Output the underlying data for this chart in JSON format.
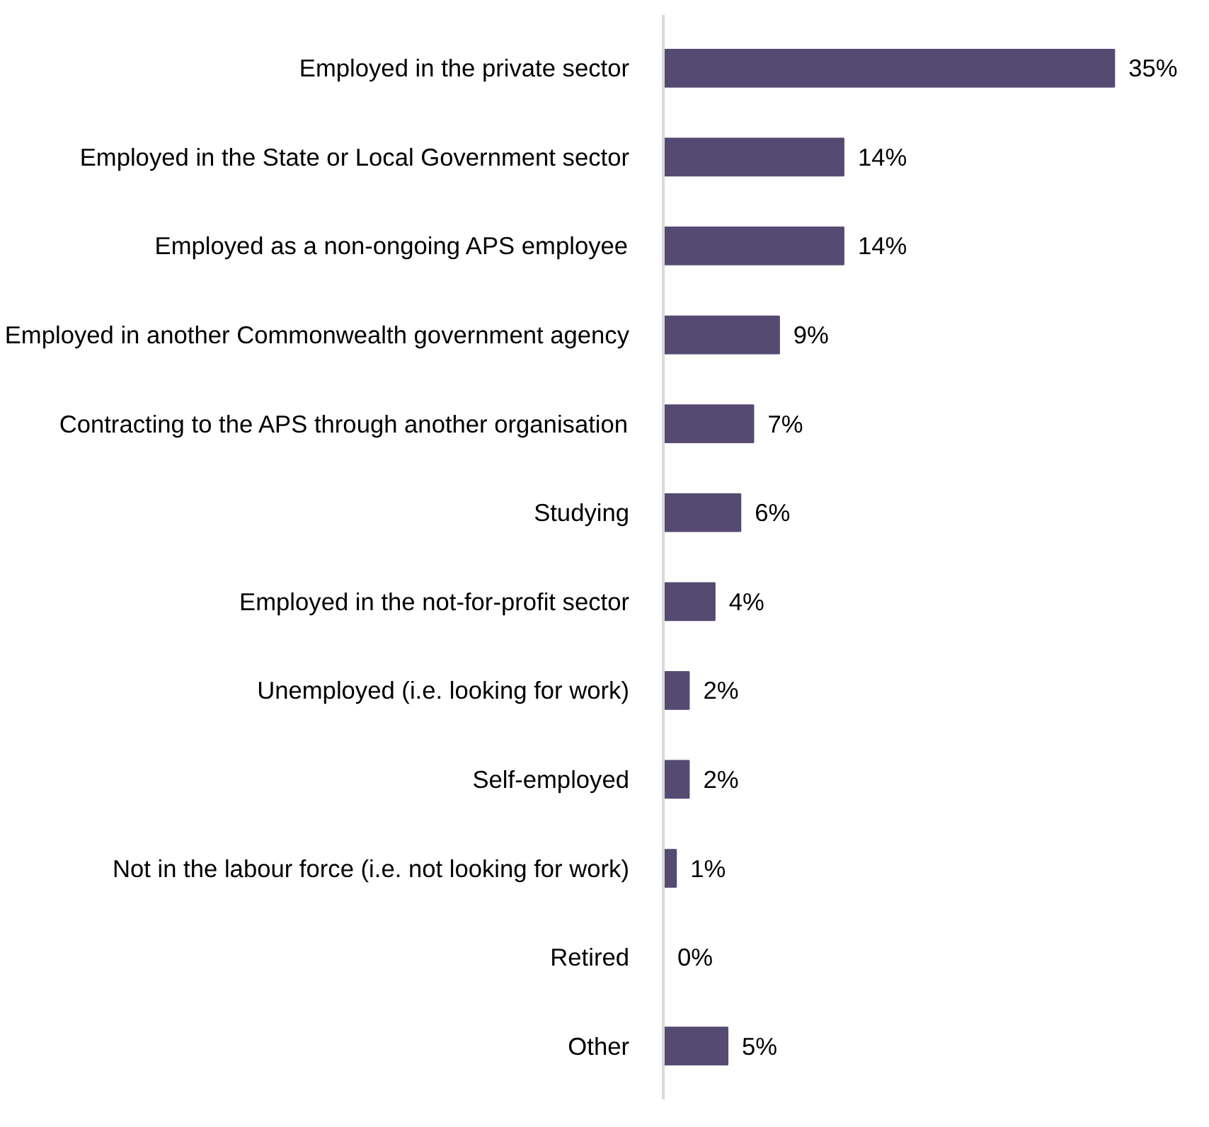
{
  "chart_data": {
    "type": "bar",
    "orientation": "horizontal",
    "categories": [
      "Employed in the private sector",
      "Employed in the State or Local Government sector",
      "Employed as a non-ongoing APS employee",
      "Employed in another Commonwealth government agency",
      "Contracting to the APS through another organisation",
      "Studying",
      "Employed in the not-for-profit sector",
      "Unemployed (i.e. looking for work)",
      "Self-employed",
      "Not in the labour force (i.e. not looking for work)",
      "Retired",
      "Other"
    ],
    "values": [
      35,
      14,
      14,
      9,
      7,
      6,
      4,
      2,
      2,
      1,
      0,
      5
    ],
    "value_labels": [
      "35%",
      "14%",
      "14%",
      "9%",
      "7%",
      "6%",
      "4%",
      "2%",
      "2%",
      "1%",
      "0%",
      "5%"
    ],
    "color": "#554b72",
    "grid": false
  }
}
